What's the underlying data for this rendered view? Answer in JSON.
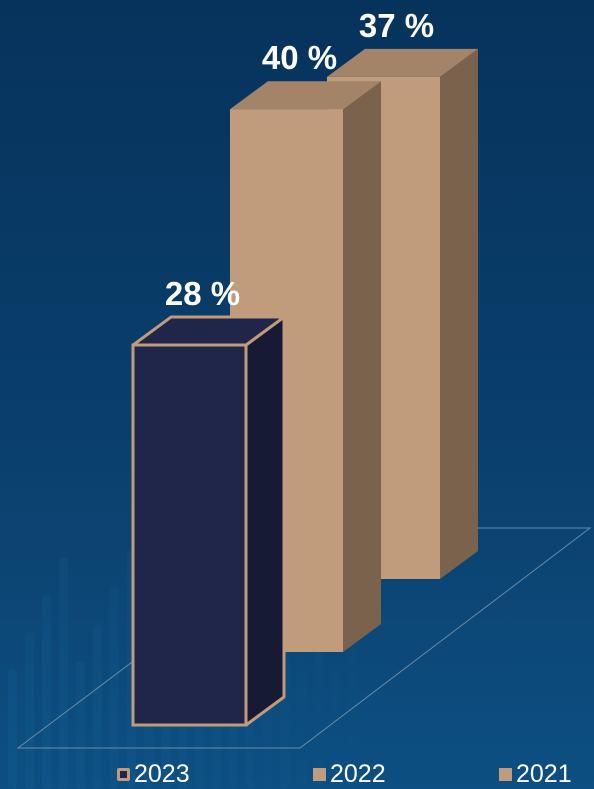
{
  "chart_data": {
    "type": "bar",
    "style": "3d",
    "categories": [
      "2023",
      "2022",
      "2021"
    ],
    "values": [
      28,
      40,
      37
    ],
    "value_labels": [
      "28 %",
      "40 %",
      "37 %"
    ],
    "unit": "%",
    "ylim": [
      0,
      45
    ],
    "grid": false,
    "legend_position": "bottom",
    "series": [
      {
        "name": "2023",
        "value": 28,
        "color": "#20264a",
        "side_color": "#161a35",
        "outline": "#c29b7a"
      },
      {
        "name": "2022",
        "value": 40,
        "color": "#c09b7c",
        "side_color": "#7a624c",
        "top_color": "#a48468"
      },
      {
        "name": "2021",
        "value": 37,
        "color": "#c09b7c",
        "side_color": "#7a624c",
        "top_color": "#a48468"
      }
    ],
    "legend": [
      "2023",
      "2022",
      "2021"
    ]
  },
  "colors": {
    "background": "#06335c",
    "label_text": "#ffffff",
    "floor_line": "#8fa6bb"
  }
}
